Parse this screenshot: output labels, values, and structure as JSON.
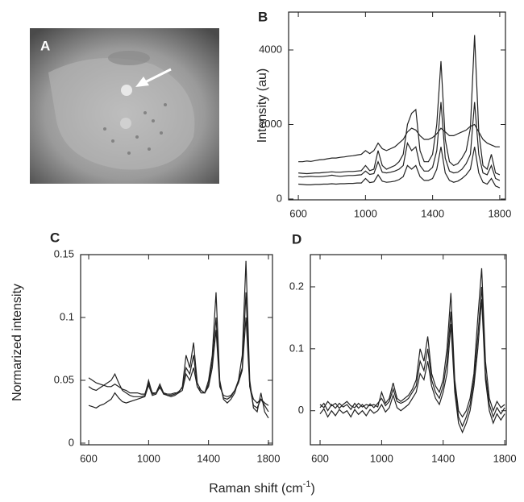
{
  "figure": {
    "image_label": "A",
    "y_label": "Normarized intensity",
    "x_label": {
      "text": "Raman shift (cm",
      "sup": "-1",
      "end": ")"
    }
  },
  "chart_data": [
    {
      "type": "line",
      "label": "B",
      "y_label": "Intensity (au)",
      "xlim": [
        542,
        1834
      ],
      "xticks": [
        600,
        1000,
        1400,
        1800
      ],
      "ylim": [
        -22,
        5016
      ],
      "yticks": [
        0,
        2000,
        4000
      ],
      "x": [
        600,
        625,
        650,
        675,
        700,
        725,
        750,
        775,
        800,
        825,
        850,
        875,
        900,
        925,
        950,
        975,
        1000,
        1025,
        1050,
        1075,
        1100,
        1125,
        1150,
        1175,
        1200,
        1225,
        1250,
        1275,
        1300,
        1325,
        1350,
        1375,
        1400,
        1425,
        1450,
        1475,
        1500,
        1525,
        1550,
        1575,
        1600,
        1625,
        1650,
        1675,
        1700,
        1725,
        1750,
        1775,
        1800
      ],
      "series": [
        {
          "color": "#222222",
          "values": [
            700,
            690,
            680,
            690,
            700,
            700,
            710,
            720,
            730,
            720,
            720,
            730,
            740,
            740,
            750,
            760,
            900,
            760,
            800,
            1300,
            900,
            800,
            850,
            900,
            1000,
            1200,
            2000,
            2300,
            2400,
            1300,
            1000,
            1000,
            1200,
            2000,
            3700,
            1600,
            1000,
            900,
            950,
            1100,
            1300,
            1900,
            4400,
            1800,
            900,
            800,
            1200,
            700,
            650
          ]
        },
        {
          "color": "#222222",
          "values": [
            1000,
            1000,
            1020,
            1010,
            1030,
            1050,
            1060,
            1080,
            1100,
            1100,
            1120,
            1130,
            1150,
            1160,
            1180,
            1200,
            1300,
            1220,
            1300,
            1500,
            1350,
            1300,
            1350,
            1400,
            1500,
            1600,
            1800,
            1900,
            1850,
            1700,
            1600,
            1600,
            1650,
            1750,
            1900,
            1800,
            1700,
            1700,
            1750,
            1800,
            1850,
            1950,
            2000,
            1800,
            1600,
            1500,
            1450,
            1400,
            1400
          ]
        },
        {
          "color": "#222222",
          "values": [
            400,
            390,
            380,
            380,
            390,
            390,
            400,
            400,
            410,
            400,
            410,
            410,
            420,
            420,
            430,
            430,
            550,
            440,
            460,
            650,
            480,
            450,
            460,
            480,
            520,
            600,
            900,
            800,
            900,
            600,
            500,
            500,
            550,
            800,
            1400,
            700,
            500,
            450,
            480,
            550,
            650,
            800,
            1400,
            700,
            450,
            400,
            550,
            350,
            300
          ]
        },
        {
          "color": "#222222",
          "values": [
            600,
            590,
            600,
            610,
            600,
            600,
            610,
            620,
            640,
            620,
            610,
            620,
            630,
            630,
            640,
            650,
            750,
            660,
            680,
            1000,
            720,
            700,
            720,
            750,
            800,
            900,
            1500,
            1300,
            1400,
            900,
            750,
            750,
            850,
            1300,
            2600,
            1100,
            750,
            700,
            720,
            800,
            950,
            1200,
            2600,
            1200,
            700,
            650,
            900,
            550,
            500
          ]
        }
      ]
    },
    {
      "type": "line",
      "label": "C",
      "xlim": [
        546,
        1827
      ],
      "xticks": [
        600,
        1000,
        1400,
        1800
      ],
      "ylim": [
        -0.0013,
        0.15
      ],
      "yticks": [
        0,
        0.05,
        0.1,
        0.15
      ],
      "x": [
        600,
        625,
        650,
        675,
        700,
        725,
        750,
        775,
        800,
        825,
        850,
        875,
        900,
        925,
        950,
        975,
        1000,
        1025,
        1050,
        1075,
        1100,
        1125,
        1150,
        1175,
        1200,
        1225,
        1250,
        1275,
        1300,
        1325,
        1350,
        1375,
        1400,
        1425,
        1450,
        1475,
        1500,
        1525,
        1550,
        1575,
        1600,
        1625,
        1650,
        1675,
        1700,
        1725,
        1750,
        1775,
        1800
      ],
      "series": [
        {
          "color": "#222222",
          "values": [
            0.045,
            0.043,
            0.042,
            0.044,
            0.046,
            0.048,
            0.05,
            0.055,
            0.048,
            0.042,
            0.04,
            0.038,
            0.037,
            0.037,
            0.037,
            0.038,
            0.05,
            0.039,
            0.04,
            0.047,
            0.04,
            0.038,
            0.037,
            0.038,
            0.04,
            0.045,
            0.07,
            0.06,
            0.08,
            0.048,
            0.042,
            0.04,
            0.05,
            0.07,
            0.12,
            0.05,
            0.035,
            0.032,
            0.035,
            0.04,
            0.05,
            0.07,
            0.145,
            0.05,
            0.028,
            0.025,
            0.04,
            0.025,
            0.02
          ]
        },
        {
          "color": "#222222",
          "values": [
            0.03,
            0.029,
            0.028,
            0.03,
            0.031,
            0.033,
            0.035,
            0.04,
            0.036,
            0.033,
            0.032,
            0.033,
            0.034,
            0.035,
            0.036,
            0.037,
            0.046,
            0.038,
            0.039,
            0.045,
            0.039,
            0.038,
            0.038,
            0.039,
            0.041,
            0.044,
            0.06,
            0.055,
            0.07,
            0.045,
            0.04,
            0.04,
            0.047,
            0.065,
            0.1,
            0.047,
            0.036,
            0.035,
            0.037,
            0.042,
            0.05,
            0.06,
            0.12,
            0.045,
            0.03,
            0.028,
            0.035,
            0.03,
            0.025
          ]
        },
        {
          "color": "#222222",
          "values": [
            0.052,
            0.05,
            0.048,
            0.047,
            0.046,
            0.045,
            0.045,
            0.047,
            0.045,
            0.043,
            0.042,
            0.04,
            0.04,
            0.04,
            0.039,
            0.039,
            0.048,
            0.04,
            0.04,
            0.044,
            0.04,
            0.039,
            0.039,
            0.04,
            0.04,
            0.042,
            0.055,
            0.05,
            0.06,
            0.045,
            0.042,
            0.04,
            0.045,
            0.06,
            0.09,
            0.045,
            0.038,
            0.037,
            0.038,
            0.042,
            0.048,
            0.058,
            0.1,
            0.045,
            0.035,
            0.032,
            0.035,
            0.032,
            0.03
          ]
        }
      ]
    },
    {
      "type": "line",
      "label": "D",
      "xlim": [
        537,
        1810
      ],
      "xticks": [
        600,
        1000,
        1400,
        1800
      ],
      "ylim": [
        -0.055,
        0.252
      ],
      "yticks": [
        0,
        0.1,
        0.2
      ],
      "x": [
        600,
        625,
        650,
        675,
        700,
        725,
        750,
        775,
        800,
        825,
        850,
        875,
        900,
        925,
        950,
        975,
        1000,
        1025,
        1050,
        1075,
        1100,
        1125,
        1150,
        1175,
        1200,
        1225,
        1250,
        1275,
        1300,
        1325,
        1350,
        1375,
        1400,
        1425,
        1450,
        1475,
        1500,
        1525,
        1550,
        1575,
        1600,
        1625,
        1650,
        1675,
        1700,
        1725,
        1750,
        1775,
        1800
      ],
      "series": [
        {
          "color": "#222222",
          "values": [
            0.01,
            0.005,
            0.015,
            0.008,
            0.012,
            0.004,
            0.01,
            0.015,
            0.008,
            0.005,
            0.012,
            0.006,
            0.01,
            0.008,
            0.01,
            0.006,
            0.03,
            0.012,
            0.02,
            0.045,
            0.02,
            0.015,
            0.02,
            0.025,
            0.035,
            0.05,
            0.1,
            0.08,
            0.12,
            0.06,
            0.04,
            0.03,
            0.05,
            0.1,
            0.19,
            0.05,
            0.0,
            -0.01,
            0.0,
            0.02,
            0.06,
            0.15,
            0.23,
            0.08,
            0.02,
            0.0,
            0.015,
            0.005,
            0.01
          ]
        },
        {
          "color": "#222222",
          "values": [
            0.005,
            0.012,
            0.0,
            0.01,
            0.004,
            0.012,
            0.006,
            0.01,
            0.002,
            0.012,
            0.004,
            0.01,
            0.003,
            0.011,
            0.005,
            0.012,
            0.02,
            0.008,
            0.015,
            0.035,
            0.015,
            0.012,
            0.015,
            0.02,
            0.03,
            0.04,
            0.08,
            0.065,
            0.1,
            0.05,
            0.03,
            0.02,
            0.04,
            0.08,
            0.16,
            0.04,
            -0.01,
            -0.025,
            -0.01,
            0.01,
            0.05,
            0.12,
            0.2,
            0.06,
            0.01,
            -0.01,
            0.005,
            -0.005,
            0.005
          ]
        },
        {
          "color": "#222222",
          "values": [
            -0.005,
            0.003,
            -0.01,
            0.0,
            -0.008,
            0.002,
            -0.004,
            0.0,
            -0.01,
            0.002,
            -0.006,
            0.0,
            -0.008,
            0.002,
            -0.004,
            0.0,
            0.01,
            -0.002,
            0.005,
            0.025,
            0.005,
            0.0,
            0.005,
            0.01,
            0.02,
            0.03,
            0.06,
            0.05,
            0.08,
            0.04,
            0.02,
            0.01,
            0.03,
            0.06,
            0.14,
            0.03,
            -0.02,
            -0.035,
            -0.02,
            0.0,
            0.04,
            0.1,
            0.18,
            0.05,
            0.0,
            -0.02,
            -0.005,
            -0.015,
            -0.005
          ]
        }
      ]
    }
  ]
}
